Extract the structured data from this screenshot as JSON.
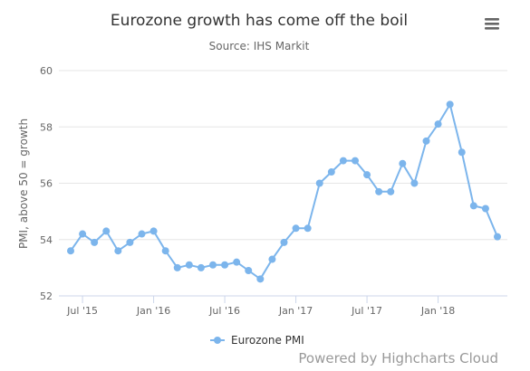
{
  "chart_data": {
    "type": "line",
    "title": "Eurozone growth has come off the boil",
    "subtitle": "Source: IHS Markit",
    "ylabel": "PMI, above 50 = growth",
    "xlabel": "",
    "ylim": [
      52,
      60
    ],
    "yticks": [
      52,
      54,
      56,
      58,
      60
    ],
    "xticks": [
      {
        "label": "Jul '15",
        "date": "2015-07"
      },
      {
        "label": "Jan '16",
        "date": "2016-01"
      },
      {
        "label": "Jul '16",
        "date": "2016-07"
      },
      {
        "label": "Jan '17",
        "date": "2017-01"
      },
      {
        "label": "Jul '17",
        "date": "2017-07"
      },
      {
        "label": "Jan '18",
        "date": "2018-01"
      }
    ],
    "x": [
      "2015-06",
      "2015-07",
      "2015-08",
      "2015-09",
      "2015-10",
      "2015-11",
      "2015-12",
      "2016-01",
      "2016-02",
      "2016-03",
      "2016-04",
      "2016-05",
      "2016-06",
      "2016-07",
      "2016-08",
      "2016-09",
      "2016-10",
      "2016-11",
      "2016-12",
      "2017-01",
      "2017-02",
      "2017-03",
      "2017-04",
      "2017-05",
      "2017-06",
      "2017-07",
      "2017-08",
      "2017-09",
      "2017-10",
      "2017-11",
      "2017-12",
      "2018-01",
      "2018-02",
      "2018-03",
      "2018-04",
      "2018-05",
      "2018-06"
    ],
    "series": [
      {
        "name": "Eurozone PMI",
        "color": "#7cb5ec",
        "values": [
          53.6,
          54.2,
          53.9,
          54.3,
          53.6,
          53.9,
          54.2,
          54.3,
          53.6,
          53.0,
          53.1,
          53.0,
          53.1,
          53.1,
          53.2,
          52.9,
          52.6,
          53.3,
          53.9,
          54.4,
          54.4,
          56.0,
          56.4,
          56.8,
          56.8,
          56.3,
          55.7,
          55.7,
          56.7,
          56.0,
          57.5,
          58.1,
          58.8,
          57.1,
          55.2,
          55.1,
          54.1
        ]
      }
    ],
    "grid": true,
    "legend_position": "bottom-center"
  },
  "menu": {
    "icon": "menu-icon"
  },
  "credits": "Powered by Highcharts Cloud"
}
